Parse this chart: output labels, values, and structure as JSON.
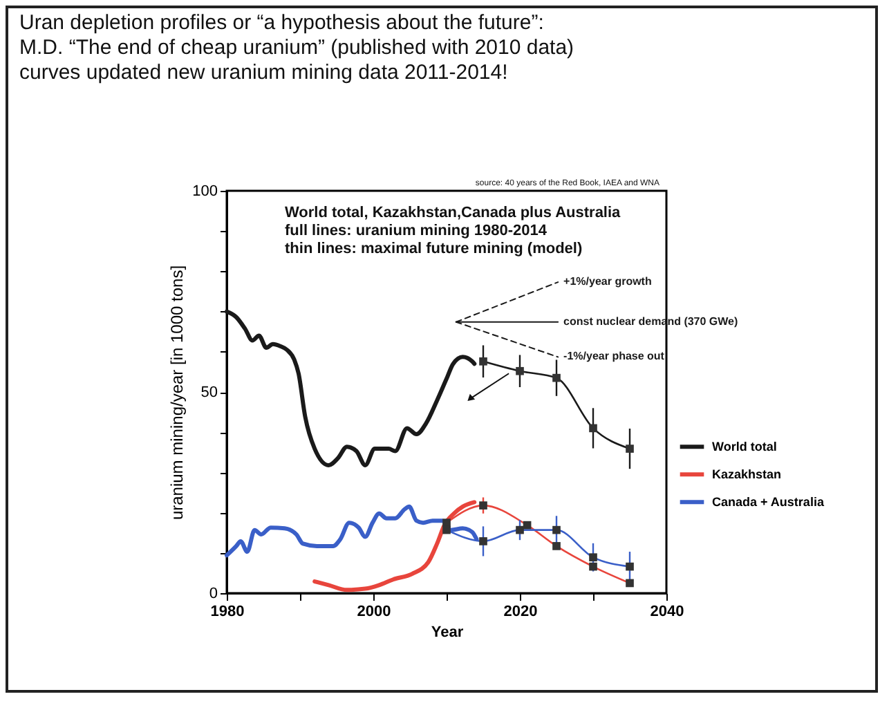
{
  "chart_data": {
    "type": "line",
    "title": "Uran depletion profiles or “a hypothesis about the future”:",
    "subtitle": "M.D. “The end of cheap uranium” (published with 2010 data)",
    "xlabel": "Year",
    "ylabel": "uranium mining/year  [in 1000 tons]",
    "annotations": [
      "curves updated new uranium mining data 2011-2014!",
      "World total, Kazakhstan,Canada plus Australia",
      "full lines: uranium mining 1980-2014",
      "thin lines: maximal future mining (model)",
      "source: 40 years of the Red Book, IAEA and WNA"
    ],
    "xlim": [
      1980,
      2040
    ],
    "xticks": [
      1980,
      {
        "value": 1990,
        "label": null
      },
      2000,
      {
        "value": 2010,
        "label": null
      },
      2020,
      {
        "value": 2030,
        "label": null
      },
      2040
    ],
    "ylim": [
      0,
      100
    ],
    "yticks": [
      0,
      {
        "value": 10,
        "label": null
      },
      {
        "value": 20,
        "label": null
      },
      {
        "value": 30,
        "label": null
      },
      {
        "value": 40,
        "label": null
      },
      50,
      {
        "value": 60,
        "label": null
      },
      {
        "value": 70,
        "label": null
      },
      {
        "value": 80,
        "label": null
      },
      {
        "value": 90,
        "label": null
      },
      100
    ],
    "legend": "right",
    "series": [
      {
        "name": "World total",
        "color": "#1a1a1a",
        "x": [
          1980,
          1981.3,
          1982.5,
          1983.5,
          1984.4,
          1985.4,
          1986.3,
          1987.3,
          1988.2,
          1989.2,
          1989.8,
          1990.7,
          1992,
          1993.9,
          1995.2,
          1996.4,
          1997.7,
          1998.9,
          2000.2,
          2002.1,
          2003,
          2004.6,
          2005.9,
          2007.2,
          2008.7,
          2010,
          2010.9,
          2012.2,
          2013.5,
          2013.8
        ],
        "values": [
          70,
          68.6,
          65.7,
          62.8,
          64,
          61,
          61.9,
          61.4,
          60.5,
          58.1,
          54.6,
          43.9,
          35.9,
          31.8,
          33.6,
          36.4,
          35.3,
          31.8,
          35.9,
          35.9,
          35.3,
          41,
          39.5,
          42.2,
          47.9,
          53.3,
          57,
          58.7,
          57.6,
          57
        ]
      },
      {
        "color": "#1a1a1a",
        "marker": "square",
        "x": [
          2015,
          2020,
          2025,
          2030,
          2035
        ],
        "values": [
          57.6,
          55.2,
          53.5,
          41,
          35.9
        ],
        "errors": [
          4,
          4,
          4.5,
          5,
          5
        ]
      },
      {
        "name": "Kazakhstan",
        "color": "#e8453c",
        "x": [
          1992,
          1993.9,
          1996.4,
          1998.9,
          2000.8,
          2002.7,
          2005.3,
          2007.5,
          2008.7,
          2009.7,
          2011,
          2012.2,
          2013.8
        ],
        "values": [
          2.9,
          2,
          0.8,
          1.1,
          2,
          3.4,
          4.8,
          7.7,
          12.3,
          16.9,
          19.8,
          21.5,
          22.6
        ]
      },
      {
        "color": "#e8453c",
        "marker": "square",
        "x": [
          2010,
          2015,
          2021,
          2025,
          2030,
          2035
        ],
        "values": [
          17.5,
          21.8,
          16.9,
          11.7,
          6.6,
          2.5
        ],
        "errors": [
          null,
          2,
          null,
          null,
          null,
          null
        ]
      },
      {
        "name": "Canada + Australia",
        "color": "#3a5fc8",
        "x": [
          1980,
          1981.3,
          1981.9,
          1982.8,
          1983.8,
          1984.7,
          1986,
          1987.9,
          1989.5,
          1990.4,
          1992.3,
          1994.5,
          1995.5,
          1996.7,
          1998,
          1998.9,
          1999.9,
          2000.8,
          2001.8,
          2003,
          2004.3,
          2004.9,
          2005.9,
          2006.8,
          2008.1,
          2009.4,
          2010.6,
          2012.2,
          2013.5,
          2014.1
        ],
        "values": [
          9.4,
          11.7,
          12.9,
          10.3,
          15.7,
          14.6,
          16.3,
          16.1,
          14.6,
          12.3,
          11.7,
          11.7,
          13.4,
          17.5,
          16.3,
          14,
          17.5,
          19.8,
          18.6,
          18.6,
          20.9,
          21.5,
          18,
          17.5,
          18,
          18,
          15.7,
          16.1,
          15.2,
          13.4
        ]
      },
      {
        "color": "#3a5fc8",
        "marker": "square",
        "x": [
          2010,
          2015,
          2020,
          2025,
          2030,
          2035
        ],
        "values": [
          15.7,
          12.9,
          15.7,
          15.7,
          8.9,
          6.6
        ],
        "errors": [
          null,
          3.7,
          2.5,
          3.5,
          3.5,
          3.7
        ]
      },
      {
        "name": "+1%/year growth",
        "color": "#1a1a1a",
        "line_style": "dashed",
        "x": [
          2011.3,
          2025.2
        ],
        "values": [
          67.4,
          77.3
        ]
      },
      {
        "name": "const nuclear demand (370 GWe)",
        "color": "#1a1a1a",
        "line_style": "solid",
        "x": [
          2011.3,
          2025.2
        ],
        "values": [
          67.4,
          67.4
        ]
      },
      {
        "name": "-1%/year phase out",
        "color": "#1a1a1a",
        "line_style": "dashed",
        "x": [
          2011.3,
          2025.2
        ],
        "values": [
          67.4,
          58.7
        ]
      }
    ]
  }
}
